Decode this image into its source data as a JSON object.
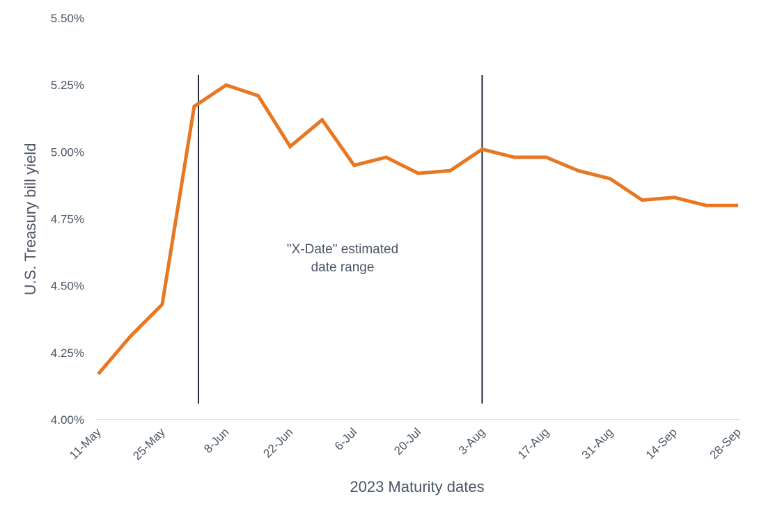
{
  "chart_data": {
    "type": "line",
    "title": "",
    "xlabel": "2023 Maturity dates",
    "ylabel": "U.S. Treasury bill yield",
    "ylim": [
      4.0,
      5.5
    ],
    "y_ticks": [
      "4.00%",
      "4.25%",
      "4.50%",
      "4.75%",
      "5.00%",
      "5.25%",
      "5.50%"
    ],
    "y_tick_values": [
      4.0,
      4.25,
      4.5,
      4.75,
      5.0,
      5.25,
      5.5
    ],
    "x_tick_labels": [
      "11-May",
      "25-May",
      "8-Jun",
      "22-Jun",
      "6-Jul",
      "20-Jul",
      "3-Aug",
      "17-Aug",
      "31-Aug",
      "14-Sep",
      "28-Sep"
    ],
    "grid": false,
    "legend": null,
    "x": [
      "11-May",
      "18-May",
      "25-May",
      "1-Jun",
      "8-Jun",
      "15-Jun",
      "22-Jun",
      "29-Jun",
      "6-Jul",
      "13-Jul",
      "20-Jul",
      "27-Jul",
      "3-Aug",
      "10-Aug",
      "17-Aug",
      "24-Aug",
      "31-Aug",
      "7-Sep",
      "14-Sep",
      "21-Sep",
      "28-Sep"
    ],
    "series": [
      {
        "name": "U.S. Treasury bill yield",
        "color": "#E87722",
        "values": [
          4.17,
          4.31,
          4.43,
          5.17,
          5.25,
          5.21,
          5.02,
          5.12,
          4.95,
          4.98,
          4.92,
          4.93,
          5.01,
          4.98,
          4.98,
          4.93,
          4.9,
          4.82,
          4.83,
          4.8,
          4.8
        ]
      }
    ],
    "annotations": [
      {
        "type": "vline",
        "x": "1-Jun",
        "color": "#1f2937"
      },
      {
        "type": "vline",
        "x": "3-Aug",
        "color": "#1f2937"
      },
      {
        "type": "text",
        "lines": [
          "\"X-Date\" estimated",
          "date range"
        ]
      }
    ]
  }
}
